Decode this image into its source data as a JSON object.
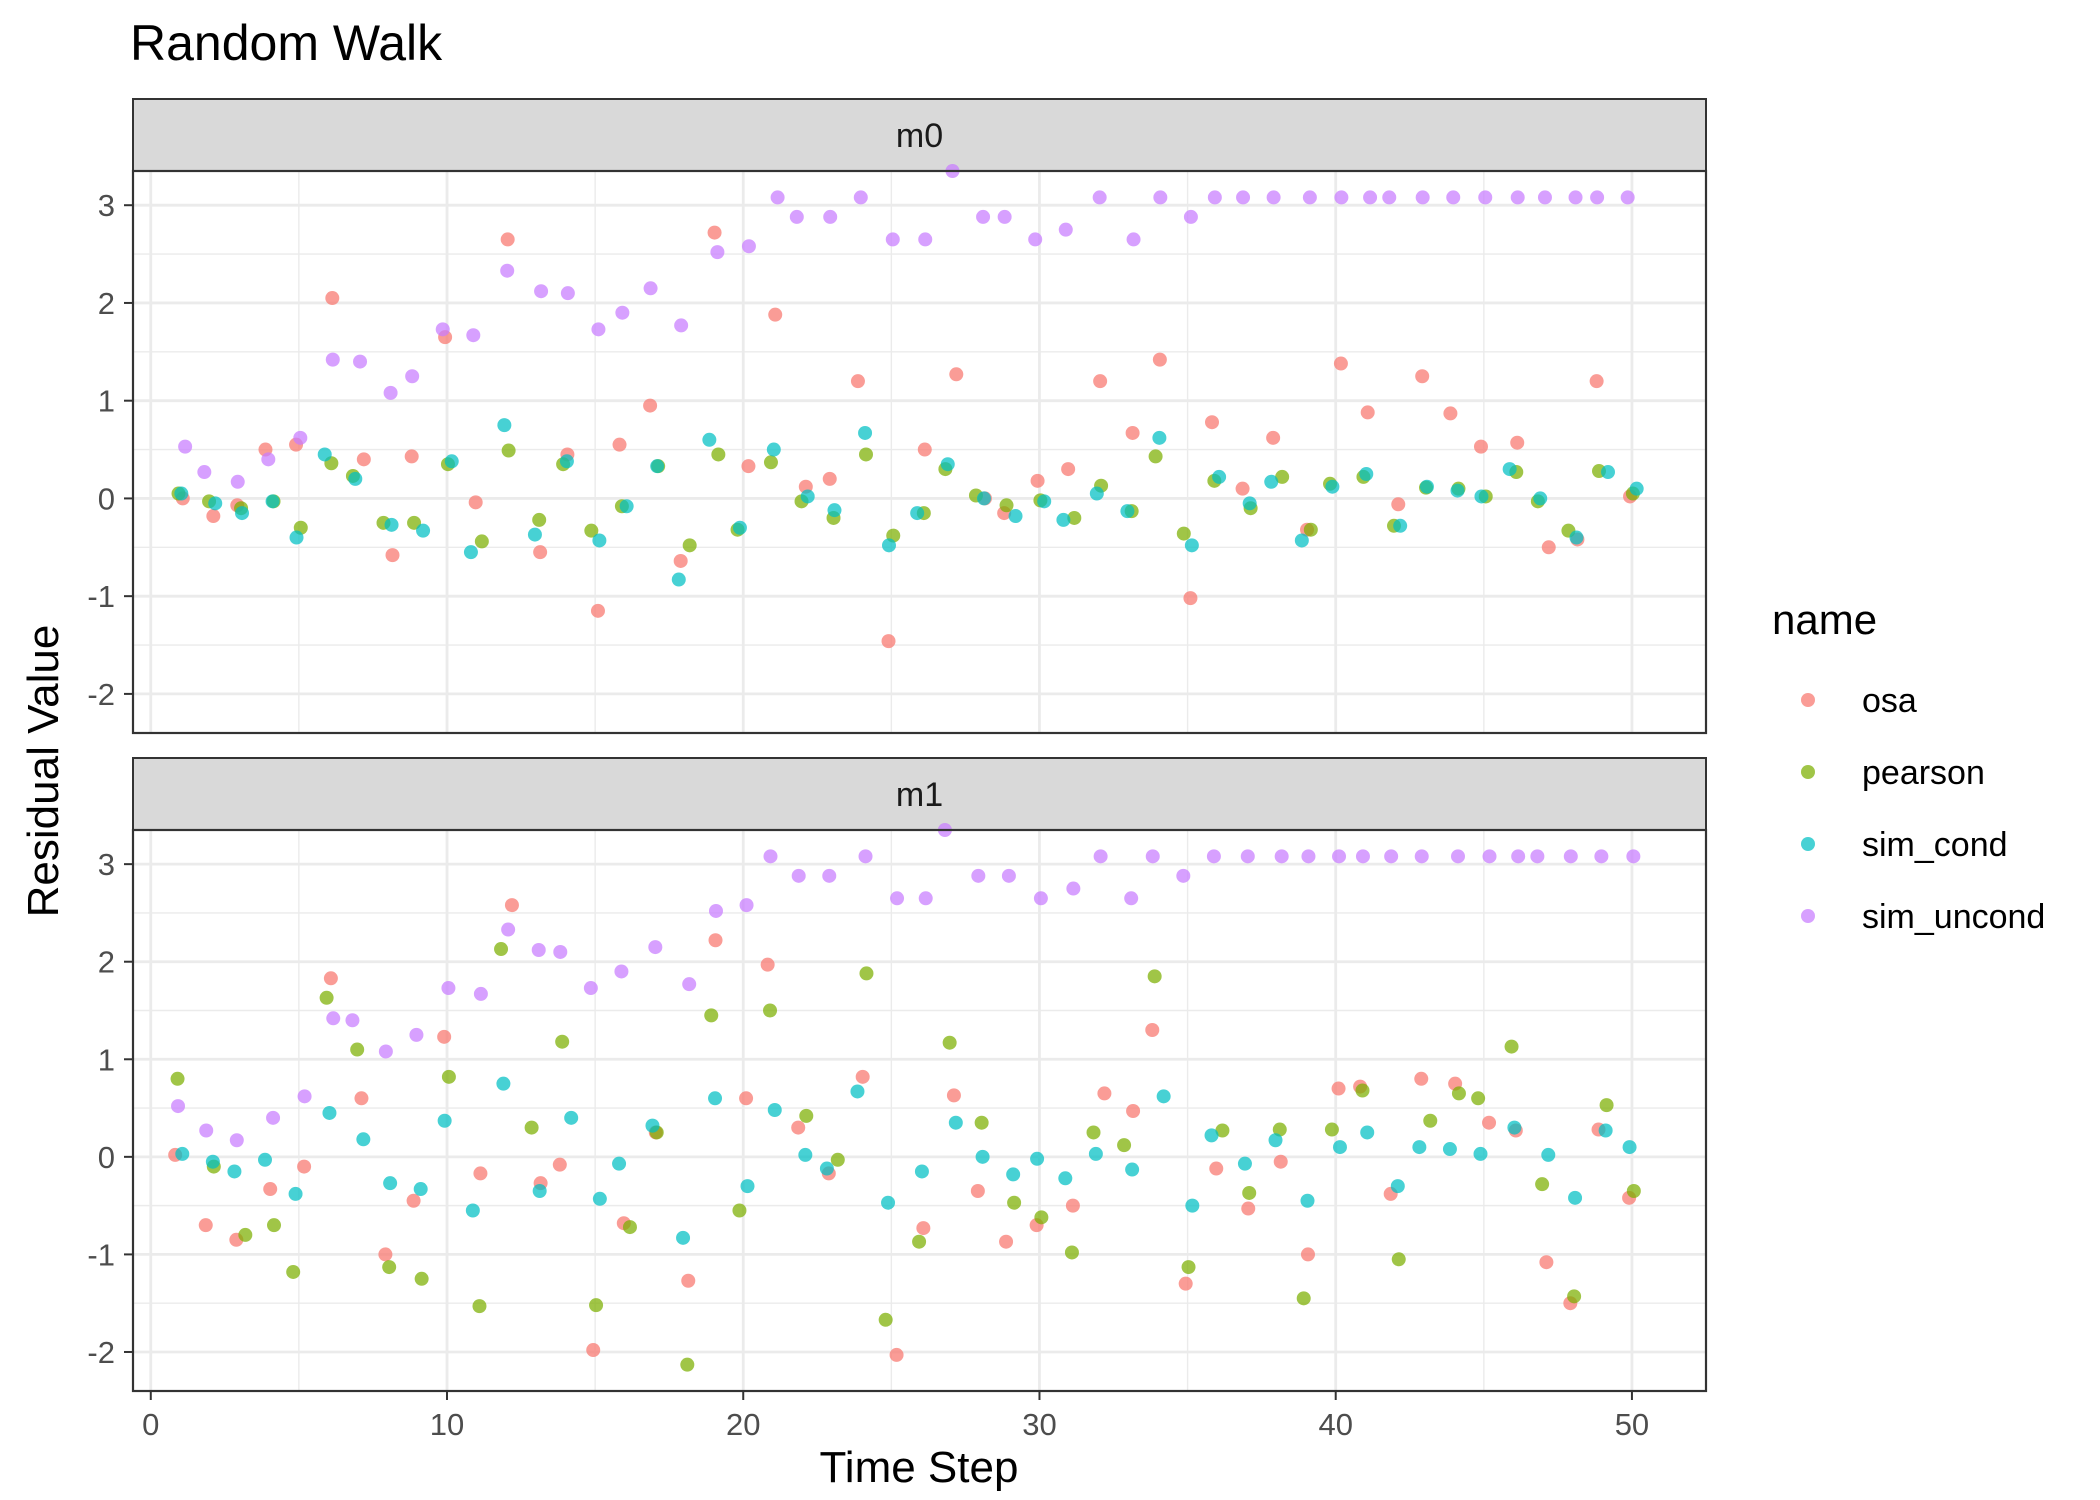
{
  "chart_data": {
    "type": "scatter",
    "title": "Random Walk",
    "xlabel": "Time Step",
    "ylabel": "Residual Value",
    "xlim": [
      -0.6,
      52.5
    ],
    "ylim": [
      -2.4,
      3.35
    ],
    "x_ticks": [
      0,
      10,
      20,
      30,
      40,
      50
    ],
    "y_ticks": [
      -2,
      -1,
      0,
      1,
      2,
      3
    ],
    "grid": true,
    "legend": {
      "title": "name",
      "placement": "right",
      "entries": [
        "osa",
        "pearson",
        "sim_cond",
        "sim_uncond"
      ]
    },
    "colors": {
      "osa": "#F8766D",
      "pearson": "#7CAE00",
      "sim_cond": "#00BFC4",
      "sim_uncond": "#C77CFF",
      "strip": "#D9D9D9",
      "grid": "#EBEBEB",
      "text": "#4D4D4D"
    },
    "panels": [
      {
        "label": "m0",
        "series": [
          {
            "name": "osa",
            "values": [
              0.0,
              -0.18,
              -0.07,
              0.5,
              0.55,
              2.05,
              0.4,
              -0.58,
              0.43,
              1.65,
              -0.04,
              2.65,
              -0.55,
              0.45,
              -1.15,
              0.55,
              0.95,
              -0.64,
              2.72,
              0.33,
              1.88,
              0.12,
              0.2,
              1.2,
              -1.46,
              0.5,
              1.27,
              0.0,
              -0.15,
              0.18,
              0.3,
              1.2,
              0.67,
              1.42,
              -1.02,
              0.78,
              0.1,
              0.62,
              -0.32,
              1.38,
              0.88,
              -0.06,
              1.25,
              0.87,
              0.53,
              0.57,
              -0.5,
              -0.42,
              1.2,
              0.02
            ]
          },
          {
            "name": "pearson",
            "values": [
              0.05,
              -0.03,
              -0.1,
              -0.03,
              -0.3,
              0.36,
              0.23,
              -0.25,
              -0.25,
              0.35,
              -0.44,
              0.49,
              -0.22,
              0.35,
              -0.33,
              -0.08,
              0.33,
              -0.48,
              0.45,
              -0.32,
              0.37,
              -0.03,
              -0.2,
              0.45,
              -0.38,
              -0.15,
              0.3,
              0.03,
              -0.07,
              -0.02,
              -0.2,
              0.13,
              -0.13,
              0.43,
              -0.36,
              0.18,
              -0.1,
              0.22,
              -0.32,
              0.15,
              0.22,
              -0.28,
              0.11,
              0.1,
              0.02,
              0.27,
              -0.03,
              -0.33,
              0.28,
              0.05
            ]
          },
          {
            "name": "sim_cond",
            "values": [
              0.05,
              -0.05,
              -0.15,
              -0.03,
              -0.4,
              0.45,
              0.2,
              -0.27,
              -0.33,
              0.38,
              -0.55,
              0.75,
              -0.37,
              0.38,
              -0.43,
              -0.08,
              0.33,
              -0.83,
              0.6,
              -0.3,
              0.5,
              0.02,
              -0.12,
              0.67,
              -0.48,
              -0.15,
              0.35,
              0.0,
              -0.18,
              -0.03,
              -0.22,
              0.05,
              -0.13,
              0.62,
              -0.48,
              0.22,
              -0.05,
              0.17,
              -0.43,
              0.12,
              0.25,
              -0.28,
              0.12,
              0.08,
              0.02,
              0.3,
              0.0,
              -0.4,
              0.27,
              0.1
            ]
          },
          {
            "name": "sim_uncond",
            "values": [
              0.53,
              0.27,
              0.17,
              0.4,
              0.62,
              1.42,
              1.4,
              1.08,
              1.25,
              1.73,
              1.67,
              2.33,
              2.12,
              2.1,
              1.73,
              1.9,
              2.15,
              1.77,
              2.52,
              2.58,
              3.08,
              2.88,
              2.88,
              3.08,
              2.65,
              2.65,
              3.35,
              2.88,
              2.88,
              2.65,
              2.75,
              3.08,
              2.65,
              3.08,
              2.88,
              3.08,
              3.08,
              3.08,
              3.08,
              3.08,
              3.08,
              3.08,
              3.08,
              3.08,
              3.08,
              3.08,
              3.08,
              3.08,
              3.08,
              3.08
            ]
          }
        ]
      },
      {
        "label": "m1",
        "series": [
          {
            "name": "osa",
            "values": [
              0.02,
              -0.7,
              -0.85,
              -0.33,
              -0.1,
              1.83,
              0.6,
              -1.0,
              -0.45,
              1.23,
              -0.17,
              2.58,
              -0.27,
              -0.08,
              -1.98,
              -0.68,
              0.25,
              -1.27,
              2.22,
              0.6,
              1.97,
              0.3,
              -0.17,
              0.82,
              -2.03,
              -0.73,
              0.63,
              -0.35,
              -0.87,
              -0.7,
              -0.5,
              0.65,
              0.47,
              1.3,
              -1.3,
              -0.12,
              -0.53,
              -0.05,
              -1.0,
              0.7,
              0.72,
              -0.38,
              0.8,
              0.75,
              0.35,
              0.27,
              -1.08,
              -1.5,
              0.28,
              -0.42
            ]
          },
          {
            "name": "pearson",
            "values": [
              0.8,
              -0.1,
              -0.8,
              -0.7,
              -1.18,
              1.63,
              1.1,
              -1.13,
              -1.25,
              0.82,
              -1.53,
              2.13,
              0.3,
              1.18,
              -1.52,
              -0.72,
              0.25,
              -2.13,
              1.45,
              -0.55,
              1.5,
              0.42,
              -0.03,
              1.88,
              -1.67,
              -0.87,
              1.17,
              0.35,
              -0.47,
              -0.62,
              -0.98,
              0.25,
              0.12,
              1.85,
              -1.13,
              0.27,
              -0.37,
              0.28,
              -1.45,
              0.28,
              0.68,
              -1.05,
              0.37,
              0.65,
              0.6,
              1.13,
              -0.28,
              -1.43,
              0.53,
              -0.35
            ]
          },
          {
            "name": "sim_cond",
            "values": [
              0.03,
              -0.05,
              -0.15,
              -0.03,
              -0.38,
              0.45,
              0.18,
              -0.27,
              -0.33,
              0.37,
              -0.55,
              0.75,
              -0.35,
              0.4,
              -0.43,
              -0.07,
              0.32,
              -0.83,
              0.6,
              -0.3,
              0.48,
              0.02,
              -0.12,
              0.67,
              -0.47,
              -0.15,
              0.35,
              0.0,
              -0.18,
              -0.02,
              -0.22,
              0.03,
              -0.13,
              0.62,
              -0.5,
              0.22,
              -0.07,
              0.17,
              -0.45,
              0.1,
              0.25,
              -0.3,
              0.1,
              0.08,
              0.03,
              0.3,
              0.02,
              -0.42,
              0.27,
              0.1
            ]
          },
          {
            "name": "sim_uncond",
            "values": [
              0.52,
              0.27,
              0.17,
              0.4,
              0.62,
              1.42,
              1.4,
              1.08,
              1.25,
              1.73,
              1.67,
              2.33,
              2.12,
              2.1,
              1.73,
              1.9,
              2.15,
              1.77,
              2.52,
              2.58,
              3.08,
              2.88,
              2.88,
              3.08,
              2.65,
              2.65,
              3.35,
              2.88,
              2.88,
              2.65,
              2.75,
              3.08,
              2.65,
              3.08,
              2.88,
              3.08,
              3.08,
              3.08,
              3.08,
              3.08,
              3.08,
              3.08,
              3.08,
              3.08,
              3.08,
              3.08,
              3.08,
              3.08,
              3.08,
              3.08
            ]
          }
        ]
      }
    ]
  }
}
